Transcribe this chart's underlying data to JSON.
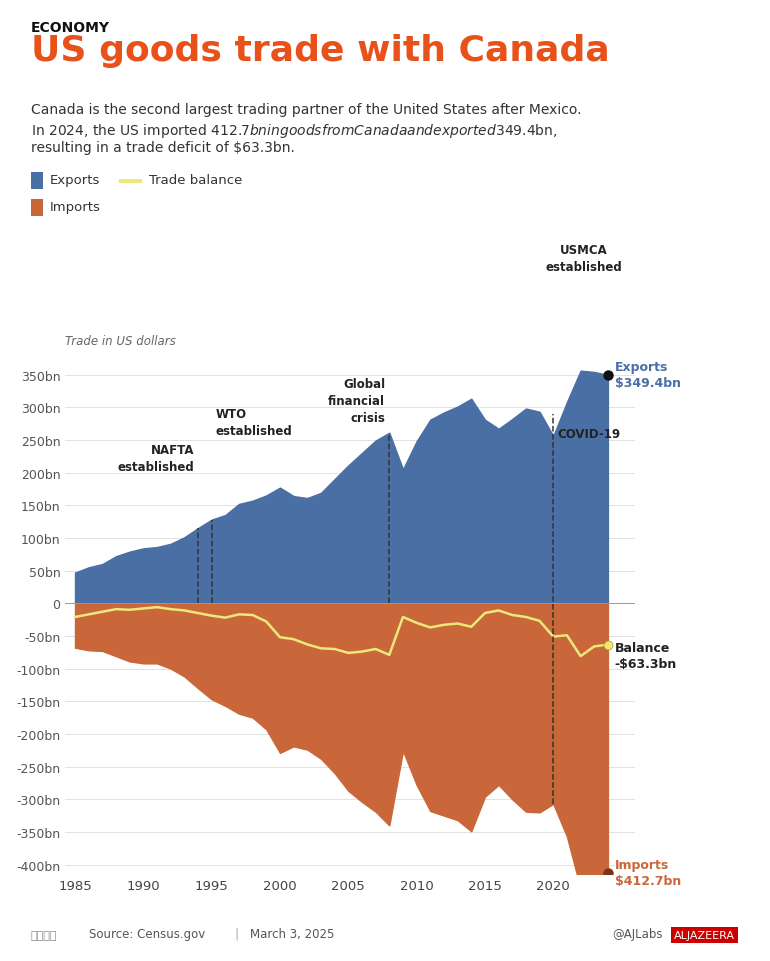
{
  "title_tag": "ECONOMY",
  "title": "US goods trade with Canada",
  "subtitle_line1": "Canada is the second largest trading partner of the United States after Mexico.",
  "subtitle_line2": "In 2024, the US imported $412.7bn in goods from Canada and exported $349.4bn,",
  "subtitle_line3": "resulting in a trade deficit of $63.3bn.",
  "ylabel": "Trade in US dollars",
  "source": "Source: Census.gov",
  "date": "March 3, 2025",
  "credit": "@AJLabs",
  "exports_color": "#4a6fa5",
  "imports_color": "#c9673a",
  "balance_color": "#ede87a",
  "background_color": "#ffffff",
  "years": [
    1985,
    1986,
    1987,
    1988,
    1989,
    1990,
    1991,
    1992,
    1993,
    1994,
    1995,
    1996,
    1997,
    1998,
    1999,
    2000,
    2001,
    2002,
    2003,
    2004,
    2005,
    2006,
    2007,
    2008,
    2009,
    2010,
    2011,
    2012,
    2013,
    2014,
    2015,
    2016,
    2017,
    2018,
    2019,
    2020,
    2021,
    2022,
    2023,
    2024
  ],
  "exports": [
    47,
    55,
    60,
    72,
    79,
    84,
    86,
    91,
    101,
    115,
    128,
    135,
    152,
    157,
    165,
    177,
    164,
    161,
    169,
    190,
    211,
    230,
    249,
    261,
    205,
    248,
    281,
    292,
    301,
    313,
    281,
    267,
    282,
    298,
    293,
    256,
    308,
    356,
    354,
    349.4
  ],
  "imports": [
    -68,
    -72,
    -73,
    -81,
    -89,
    -92,
    -92,
    -100,
    -112,
    -130,
    -147,
    -157,
    -169,
    -175,
    -193,
    -229,
    -219,
    -224,
    -238,
    -260,
    -287,
    -304,
    -319,
    -340,
    -226,
    -278,
    -318,
    -325,
    -332,
    -349,
    -296,
    -278,
    -300,
    -319,
    -320,
    -307,
    -357,
    -437,
    -420,
    -412.7
  ],
  "balance": [
    -21,
    -17,
    -13,
    -9,
    -10,
    -8,
    -6,
    -9,
    -11,
    -15,
    -19,
    -22,
    -17,
    -18,
    -28,
    -52,
    -55,
    -63,
    -69,
    -70,
    -76,
    -74,
    -70,
    -79,
    -21,
    -30,
    -37,
    -33,
    -31,
    -36,
    -15,
    -11,
    -18,
    -21,
    -27,
    -51,
    -49,
    -81,
    -66,
    -63.3
  ],
  "xlim": [
    1984.3,
    2026
  ],
  "ylim": [
    -415,
    380
  ],
  "yticks": [
    -400,
    -350,
    -300,
    -250,
    -200,
    -150,
    -100,
    -50,
    0,
    50,
    100,
    150,
    200,
    250,
    300,
    350
  ],
  "xticks": [
    1985,
    1990,
    1995,
    2000,
    2005,
    2010,
    2015,
    2020
  ],
  "nafta_year": 1994,
  "wto_year": 1995,
  "crisis_year": 2008,
  "covid_year": 2020,
  "usmca_year": 2020
}
